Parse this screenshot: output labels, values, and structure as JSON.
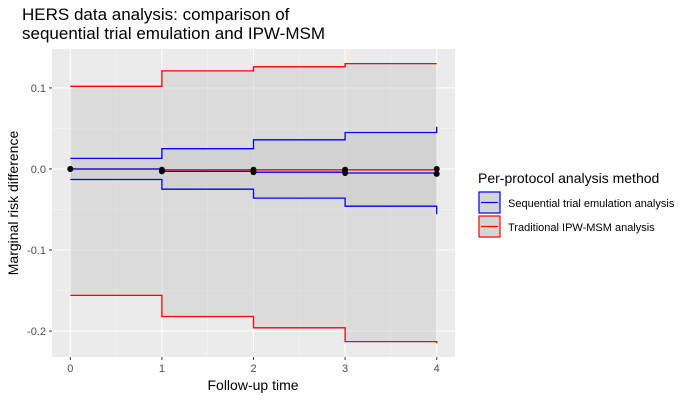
{
  "chart_data": {
    "type": "line",
    "title": [
      "HERS data analysis: comparison of",
      "sequential trial emulation and IPW-MSM"
    ],
    "xlabel": "Follow-up time",
    "ylabel": "Marginal risk difference",
    "xlim": [
      -0.2,
      4.2
    ],
    "ylim": [
      -0.232,
      0.148
    ],
    "x_ticks": [
      0,
      1,
      2,
      3,
      4
    ],
    "x_tick_labels": [
      "0",
      "1",
      "2",
      "3",
      "4"
    ],
    "y_ticks": [
      0.1,
      0.0,
      -0.1,
      -0.2
    ],
    "y_tick_labels": [
      "0.1",
      "0.0",
      "-0.1",
      "-0.2"
    ],
    "grid": true,
    "legend": {
      "title": "Per-protocol analysis method",
      "position": "right"
    },
    "series": [
      {
        "name": "Sequential trial emulation analysis",
        "color": "#0000ff",
        "x": [
          0,
          1,
          2,
          3,
          4
        ],
        "estimate": [
          0.0,
          -0.003,
          -0.004,
          -0.005,
          -0.006
        ],
        "upper": [
          0.013,
          0.025,
          0.036,
          0.045,
          0.052
        ],
        "lower": [
          -0.013,
          -0.025,
          -0.036,
          -0.046,
          -0.056
        ]
      },
      {
        "name": "Traditional IPW-MSM analysis",
        "color": "#ff0000",
        "x": [
          0,
          1,
          2,
          3,
          4
        ],
        "estimate": [
          0.0,
          -0.001,
          -0.001,
          -0.001,
          0.0
        ],
        "upper": [
          0.102,
          0.121,
          0.126,
          0.13,
          0.13
        ],
        "lower": [
          -0.156,
          -0.182,
          -0.196,
          -0.213,
          -0.215
        ]
      }
    ]
  }
}
